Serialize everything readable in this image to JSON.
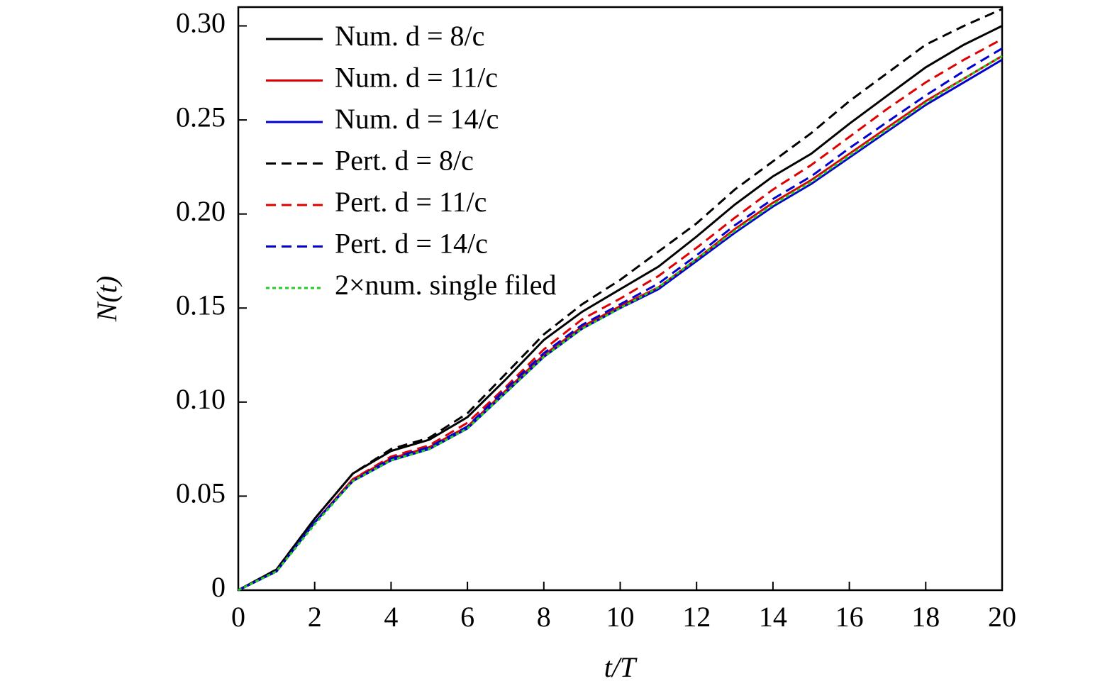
{
  "chart_data": {
    "type": "line",
    "xlabel": "t/T",
    "ylabel": "N(t)",
    "x": [
      0,
      1,
      2,
      3,
      4,
      5,
      6,
      7,
      8,
      9,
      10,
      11,
      12,
      13,
      14,
      15,
      16,
      17,
      18,
      19,
      20
    ],
    "xlim": [
      0,
      20
    ],
    "xticks": [
      0,
      2,
      4,
      6,
      8,
      10,
      12,
      14,
      16,
      18,
      20
    ],
    "ylim": [
      0,
      0.31
    ],
    "yticks": [
      0,
      0.05,
      {
        "value": 0.1,
        "label": "0.10"
      },
      0.15,
      {
        "value": 0.2,
        "label": "0.20"
      },
      0.25,
      {
        "value": 0.3,
        "label": "0.30"
      }
    ],
    "legend": "upper left",
    "series": [
      {
        "name": "Num. d = 8/c",
        "color": "#000000",
        "linestyle": "solid",
        "values": [
          0,
          0.011,
          0.038,
          0.062,
          0.074,
          0.08,
          0.092,
          0.112,
          0.133,
          0.148,
          0.16,
          0.172,
          0.188,
          0.205,
          0.22,
          0.232,
          0.248,
          0.263,
          0.278,
          0.29,
          0.3
        ]
      },
      {
        "name": "Num. d = 11/c",
        "color": "#e00000",
        "linestyle": "solid",
        "values": [
          0,
          0.01,
          0.036,
          0.059,
          0.07,
          0.076,
          0.087,
          0.106,
          0.125,
          0.14,
          0.151,
          0.161,
          0.176,
          0.192,
          0.206,
          0.218,
          0.232,
          0.246,
          0.26,
          0.272,
          0.284
        ]
      },
      {
        "name": "Num. d = 14/c",
        "color": "#0000d0",
        "linestyle": "solid",
        "values": [
          0,
          0.01,
          0.036,
          0.058,
          0.069,
          0.075,
          0.086,
          0.105,
          0.124,
          0.139,
          0.15,
          0.16,
          0.175,
          0.19,
          0.204,
          0.216,
          0.23,
          0.244,
          0.258,
          0.27,
          0.282
        ]
      },
      {
        "name": "Pert. d = 8/c",
        "color": "#000000",
        "linestyle": "dashed",
        "values": [
          0,
          0.011,
          0.038,
          0.062,
          0.075,
          0.081,
          0.094,
          0.115,
          0.136,
          0.152,
          0.165,
          0.18,
          0.195,
          0.213,
          0.228,
          0.243,
          0.26,
          0.275,
          0.29,
          0.3,
          0.309
        ]
      },
      {
        "name": "Pert. d = 11/c",
        "color": "#e00000",
        "linestyle": "dashed",
        "values": [
          0,
          0.01,
          0.036,
          0.059,
          0.071,
          0.077,
          0.089,
          0.108,
          0.128,
          0.144,
          0.155,
          0.167,
          0.182,
          0.198,
          0.213,
          0.226,
          0.241,
          0.256,
          0.27,
          0.282,
          0.293
        ]
      },
      {
        "name": "Pert. d = 14/c",
        "color": "#0000d0",
        "linestyle": "dashed",
        "values": [
          0,
          0.01,
          0.036,
          0.058,
          0.07,
          0.076,
          0.087,
          0.107,
          0.126,
          0.141,
          0.152,
          0.163,
          0.178,
          0.194,
          0.208,
          0.22,
          0.235,
          0.249,
          0.263,
          0.276,
          0.288
        ]
      },
      {
        "name": "2×num. single filed",
        "color": "#22cc22",
        "linestyle": "dotted",
        "values": [
          0,
          0.01,
          0.035,
          0.058,
          0.069,
          0.075,
          0.086,
          0.105,
          0.124,
          0.139,
          0.15,
          0.161,
          0.176,
          0.191,
          0.205,
          0.217,
          0.231,
          0.245,
          0.259,
          0.272,
          0.284
        ]
      }
    ]
  }
}
